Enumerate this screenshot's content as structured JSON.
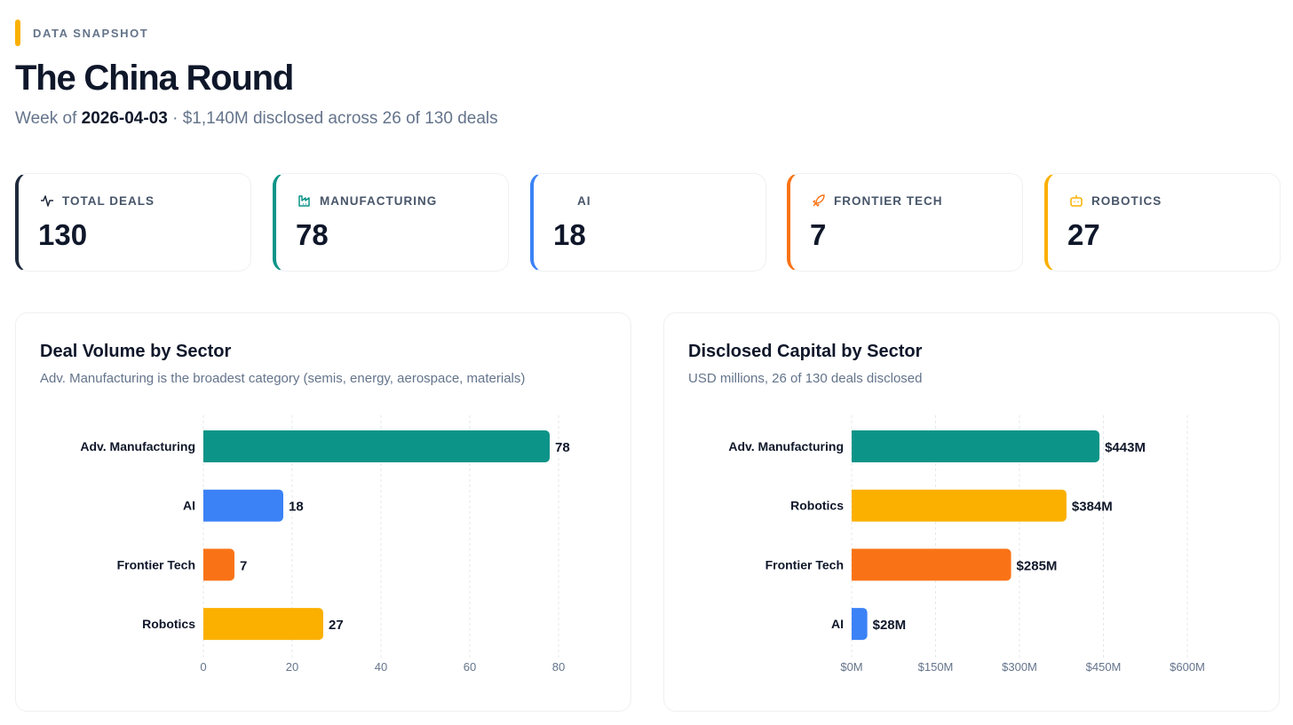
{
  "header": {
    "eyebrow": "DATA SNAPSHOT",
    "title": "The China Round",
    "week_prefix": "Week of ",
    "week": "2026-04-03",
    "summary": " · $1,140M disclosed across 26 of 130 deals"
  },
  "cards": [
    {
      "label": "TOTAL DEALS",
      "value": "130",
      "icon": "activity-icon",
      "color": "#1e293b"
    },
    {
      "label": "MANUFACTURING",
      "value": "78",
      "icon": "factory-icon",
      "color": "#0d9488"
    },
    {
      "label": "AI",
      "value": "18",
      "icon": "brain-icon",
      "color": "#3b82f6"
    },
    {
      "label": "FRONTIER TECH",
      "value": "7",
      "icon": "rocket-icon",
      "color": "#f97316"
    },
    {
      "label": "ROBOTICS",
      "value": "27",
      "icon": "bot-icon",
      "color": "#fbb000"
    }
  ],
  "chart_data": [
    {
      "type": "bar",
      "orientation": "horizontal",
      "title": "Deal Volume by Sector",
      "subtitle": "Adv. Manufacturing is the broadest category (semis, energy, aerospace, materials)",
      "categories": [
        "Adv. Manufacturing",
        "AI",
        "Frontier Tech",
        "Robotics"
      ],
      "values": [
        78,
        18,
        7,
        27
      ],
      "value_labels": [
        "78",
        "18",
        "7",
        "27"
      ],
      "colors": [
        "#0d9488",
        "#3b82f6",
        "#f97316",
        "#fbb000"
      ],
      "xlim": [
        0,
        80
      ],
      "ticks": [
        0,
        20,
        40,
        60,
        80
      ],
      "tick_labels": [
        "0",
        "20",
        "40",
        "60",
        "80"
      ],
      "grid": true
    },
    {
      "type": "bar",
      "orientation": "horizontal",
      "title": "Disclosed Capital by Sector",
      "subtitle": "USD millions, 26 of 130 deals disclosed",
      "categories": [
        "Adv. Manufacturing",
        "Robotics",
        "Frontier Tech",
        "AI"
      ],
      "values": [
        443,
        384,
        285,
        28
      ],
      "value_labels": [
        "$443M",
        "$384M",
        "$285M",
        "$28M"
      ],
      "colors": [
        "#0d9488",
        "#fbb000",
        "#f97316",
        "#3b82f6"
      ],
      "xlim": [
        0,
        600
      ],
      "ticks": [
        0,
        150,
        300,
        450,
        600
      ],
      "tick_labels": [
        "$0M",
        "$150M",
        "$300M",
        "$450M",
        "$600M"
      ],
      "grid": true
    }
  ]
}
